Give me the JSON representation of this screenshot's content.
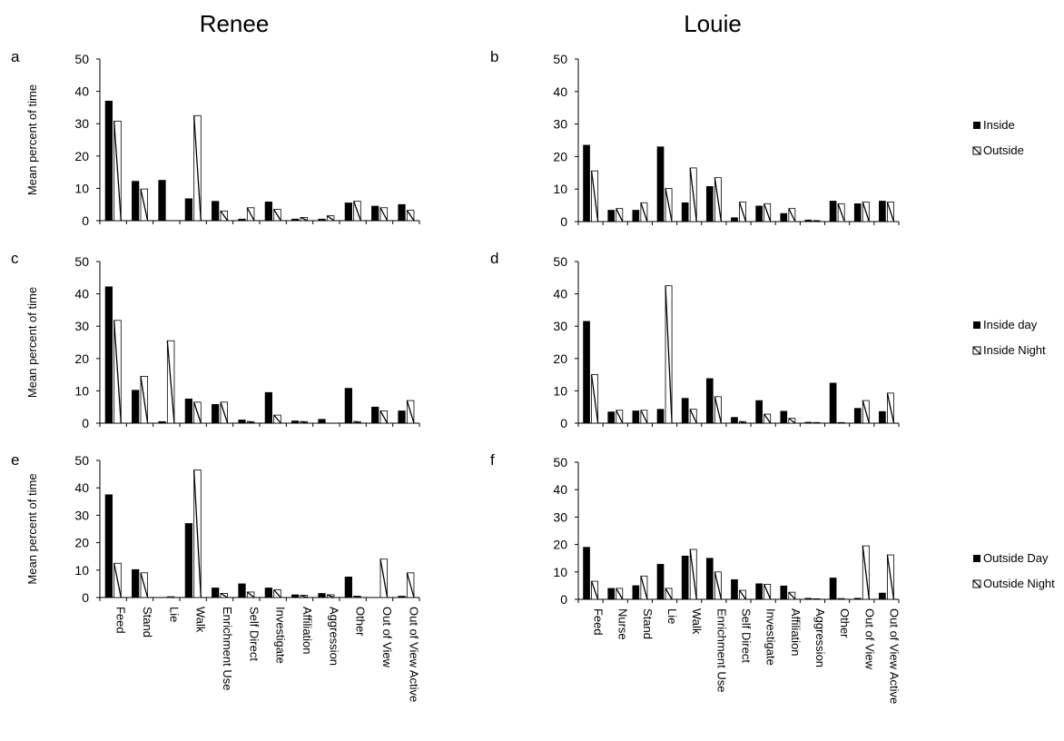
{
  "titles": {
    "left": "Renee",
    "right": "Louie"
  },
  "colors": {
    "series1": "#000000",
    "series2": "#ffffff",
    "axis": "#000000",
    "hatch": "#000000"
  },
  "chart_data": [
    {
      "id": "a",
      "type": "bar",
      "ylabel": "Mean percent of time",
      "ylim": [
        0,
        50
      ],
      "yticks": [
        0,
        10,
        20,
        30,
        40,
        50
      ],
      "categories": [
        "Feed",
        "Stand",
        "Lie",
        "Walk",
        "Enrichment Use",
        "Self Direct",
        "Investigate",
        "Affiliation",
        "Aggression",
        "Other",
        "Out of View",
        "Out of View Active"
      ],
      "series": [
        {
          "name": "Inside",
          "values": [
            37,
            12.2,
            12.5,
            6.8,
            6,
            0.5,
            5.8,
            0.5,
            0.5,
            5.5,
            4.5,
            5
          ]
        },
        {
          "name": "Outside",
          "values": [
            30.8,
            9.8,
            0,
            32.5,
            3,
            4,
            3.5,
            1,
            1.5,
            6,
            4,
            3.2
          ]
        }
      ],
      "show_categories": false
    },
    {
      "id": "b",
      "type": "bar",
      "ylim": [
        0,
        50
      ],
      "yticks": [
        0,
        10,
        20,
        30,
        40,
        50
      ],
      "categories": [
        "Feed",
        "Nurse",
        "Stand",
        "Lie",
        "Walk",
        "Enrichment Use",
        "Self Direct",
        "Investigate",
        "Affiliation",
        "Aggression",
        "Other",
        "Out of View",
        "Out of View Active"
      ],
      "series": [
        {
          "name": "Inside",
          "values": [
            23.5,
            3.5,
            3.5,
            23,
            5.8,
            10.8,
            1.2,
            4.8,
            2.5,
            0.5,
            6.3,
            5.5,
            6.3
          ]
        },
        {
          "name": "Outside",
          "values": [
            15.6,
            4,
            5.8,
            10.2,
            16.5,
            13.5,
            6,
            5.5,
            4,
            0.3,
            5.5,
            6,
            6
          ]
        }
      ],
      "show_categories": false
    },
    {
      "id": "c",
      "type": "bar",
      "ylabel": "Mean percent of time",
      "ylim": [
        0,
        50
      ],
      "yticks": [
        0,
        10,
        20,
        30,
        40,
        50
      ],
      "categories": [
        "Feed",
        "Stand",
        "Lie",
        "Walk",
        "Enrichment Use",
        "Self Direct",
        "Investigate",
        "Affiliation",
        "Aggression",
        "Other",
        "Out of View",
        "Out of View Active"
      ],
      "series": [
        {
          "name": "Inside day",
          "values": [
            42.2,
            10.2,
            0.5,
            7.5,
            5.8,
            1,
            9.5,
            0.7,
            1.2,
            10.8,
            5,
            3.8
          ]
        },
        {
          "name": "Inside Night",
          "values": [
            31.8,
            14.5,
            25.5,
            6.5,
            6.5,
            0.5,
            2.5,
            0.5,
            0,
            0.5,
            3.8,
            7
          ]
        }
      ],
      "show_categories": false
    },
    {
      "id": "d",
      "type": "bar",
      "ylim": [
        0,
        50
      ],
      "yticks": [
        0,
        10,
        20,
        30,
        40,
        50
      ],
      "categories": [
        "Feed",
        "Nurse",
        "Stand",
        "Lie",
        "Walk",
        "Enrichment Use",
        "Self Direct",
        "Investigate",
        "Affiliation",
        "Aggression",
        "Other",
        "Out of View",
        "Out of View Active"
      ],
      "series": [
        {
          "name": "Inside day",
          "values": [
            31.5,
            3.5,
            3.8,
            4.3,
            7.7,
            13.8,
            1.8,
            7,
            3.7,
            0.3,
            12.4,
            4.6,
            3.6
          ]
        },
        {
          "name": "Inside Night",
          "values": [
            15,
            4,
            4,
            42.5,
            4.3,
            8.2,
            0.5,
            2.8,
            1.5,
            0.2,
            0.2,
            7,
            9.3
          ]
        }
      ],
      "show_categories": false
    },
    {
      "id": "e",
      "type": "bar",
      "ylabel": "Mean percent of time",
      "ylim": [
        0,
        50
      ],
      "yticks": [
        0,
        10,
        20,
        30,
        40,
        50
      ],
      "categories": [
        "Feed",
        "Stand",
        "Lie",
        "Walk",
        "Enrichment Use",
        "Self Direct",
        "Investigate",
        "Affiliation",
        "Aggression",
        "Other",
        "Out of View",
        "Out of View Active"
      ],
      "series": [
        {
          "name": "Outside Day",
          "values": [
            37.5,
            10.2,
            0,
            27,
            3.5,
            5,
            3.5,
            1,
            1.5,
            7.5,
            0,
            0.5
          ]
        },
        {
          "name": "Outside Night",
          "values": [
            12.5,
            9,
            0.3,
            46.5,
            1.5,
            2,
            2.8,
            0.8,
            1,
            0.5,
            14,
            9
          ]
        }
      ],
      "show_categories": true
    },
    {
      "id": "f",
      "type": "bar",
      "ylim": [
        0,
        50
      ],
      "yticks": [
        0,
        10,
        20,
        30,
        40,
        50
      ],
      "categories": [
        "Feed",
        "Nurse",
        "Stand",
        "Lie",
        "Walk",
        "Enrichment Use",
        "Self Direct",
        "Investigate",
        "Affiliation",
        "Aggression",
        "Other",
        "Out of View",
        "Out of View Active"
      ],
      "series": [
        {
          "name": "Outside Day",
          "values": [
            19,
            4,
            5,
            12.8,
            15.8,
            15,
            7.2,
            5.7,
            4.9,
            0.4,
            7.8,
            0.4,
            2.3
          ]
        },
        {
          "name": "Outside Night",
          "values": [
            6.6,
            4,
            8.5,
            4,
            18.2,
            10,
            3.3,
            5.5,
            2.6,
            0.2,
            0.3,
            19.5,
            16.2
          ]
        }
      ],
      "show_categories": true
    }
  ],
  "legends": [
    {
      "items": [
        "Inside",
        "Outside"
      ]
    },
    {
      "items": [
        "Inside day",
        "Inside Night"
      ]
    },
    {
      "items": [
        "Outside Day",
        "Outside Night"
      ]
    }
  ]
}
